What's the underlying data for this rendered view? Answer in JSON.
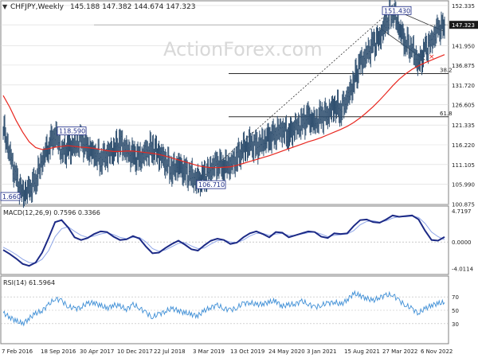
{
  "header": {
    "symbol_label": "CHFJPY,Weekly",
    "ohlc": "145.188 147.382 144.674 147.323"
  },
  "watermark": "ActionForex.com",
  "colors": {
    "price_bars": "#2f4f6f",
    "moving_average": "#e8271f",
    "macd_line": "#1c2a86",
    "signal_line": "#8fa6e8",
    "rsi_line": "#3f8fd6",
    "level_lines": "#2b2b2b",
    "grid": "#d9d9d9"
  },
  "chart_data": [
    {
      "type": "line",
      "title": "CHFJPY,Weekly",
      "ohlc_last": {
        "open": 145.188,
        "high": 147.382,
        "low": 144.674,
        "close": 147.323
      },
      "ylim": [
        100.75,
        153.35
      ],
      "yticks": [
        152.335,
        147.323,
        141.95,
        136.875,
        131.72,
        126.605,
        121.335,
        116.22,
        111.105,
        105.99,
        100.875
      ],
      "current_price_label": "147.323",
      "xticks": [
        "7 Feb 2016",
        "18 Sep 2016",
        "30 Apr 2017",
        "10 Dec 2017",
        "22 Jul 2018",
        "3 Mar 2019",
        "13 Oct 2019",
        "24 May 2020",
        "3 Jan 2021",
        "15 Aug 2021",
        "27 Mar 2022",
        "6 Nov 2022"
      ],
      "series": [
        {
          "values": [
            120.0,
            114.0,
            106.5,
            103.8,
            104.2,
            107.5,
            112.0,
            116.5,
            118.59,
            114.5,
            115.0,
            116.2,
            117.0,
            115.5,
            113.6,
            112.8,
            113.5,
            115.2,
            116.5,
            114.8,
            113.0,
            112.8,
            114.2,
            115.5,
            113.8,
            112.2,
            109.5,
            111.0,
            109.0,
            108.0,
            106.71,
            108.0,
            110.0,
            111.5,
            110.5,
            111.0,
            113.0,
            115.0,
            116.5,
            115.5,
            117.0,
            118.0,
            119.5,
            120.0,
            119.0,
            120.5,
            122.0,
            123.0,
            122.0,
            123.5,
            124.5,
            126.0,
            125.5,
            128.0,
            133.0,
            137.0,
            140.0,
            142.0,
            144.5,
            147.5,
            151.43,
            146.0,
            143.0,
            140.5,
            137.5,
            140.5,
            143.5,
            146.0,
            147.323
          ]
        },
        {
          "values": [
            129.0,
            126.0,
            122.5,
            119.5,
            117.0,
            115.5,
            115.0,
            115.2,
            115.6,
            115.8,
            116.0,
            115.8,
            115.6,
            115.5,
            115.3,
            115.0,
            114.7,
            114.5,
            114.5,
            114.6,
            114.6,
            114.4,
            114.2,
            114.0,
            113.7,
            113.3,
            112.8,
            112.3,
            111.8,
            111.3,
            110.8,
            110.5,
            110.3,
            110.3,
            110.4,
            110.5,
            110.9,
            111.4,
            111.9,
            112.4,
            112.9,
            113.4,
            114.0,
            114.6,
            115.2,
            115.8,
            116.4,
            117.0,
            117.5,
            118.1,
            118.8,
            119.5,
            120.2,
            121.0,
            122.0,
            123.2,
            124.6,
            126.1,
            127.8,
            129.6,
            131.5,
            133.2,
            134.6,
            135.8,
            136.7,
            137.5,
            138.2,
            138.9,
            139.6
          ]
        }
      ],
      "annotations": {
        "swing_labels": [
          "118.590",
          "106.710",
          "151.430",
          "1.660"
        ],
        "fibonacci_levels": [
          {
            "label": "38.2",
            "value": 134.68
          },
          {
            "label": "61.8",
            "value": 123.48
          }
        ]
      }
    },
    {
      "type": "line",
      "title": "MACD(12,26,9) 0.7596 0.3366",
      "ylim": [
        -4.9,
        5.3
      ],
      "yticks": [
        4.7197,
        0.0,
        -4.0114
      ],
      "series": [
        {
          "values": [
            -1.2,
            -1.8,
            -2.5,
            -3.3,
            -3.6,
            -3.1,
            -1.6,
            0.6,
            3.0,
            3.3,
            2.2,
            0.7,
            0.3,
            0.6,
            1.2,
            1.6,
            1.5,
            0.8,
            0.3,
            0.4,
            0.9,
            0.5,
            -0.7,
            -1.7,
            -1.6,
            -0.9,
            -0.3,
            0.2,
            -0.4,
            -1.1,
            -1.3,
            -0.5,
            0.2,
            0.5,
            0.3,
            -0.3,
            -0.1,
            0.7,
            1.3,
            1.6,
            1.2,
            0.7,
            1.5,
            1.4,
            0.7,
            1.0,
            1.3,
            1.6,
            1.5,
            0.8,
            0.6,
            1.3,
            1.2,
            1.3,
            2.4,
            3.3,
            3.4,
            3.0,
            2.9,
            3.4,
            4.0,
            3.8,
            3.9,
            4.0,
            3.4,
            1.7,
            0.3,
            0.2,
            0.76
          ]
        },
        {
          "values": [
            -0.8,
            -1.3,
            -1.9,
            -2.6,
            -3.1,
            -3.2,
            -2.6,
            -1.3,
            0.8,
            2.0,
            2.3,
            1.6,
            1.0,
            0.7,
            0.9,
            1.2,
            1.4,
            1.1,
            0.7,
            0.5,
            0.7,
            0.7,
            0.0,
            -1.0,
            -1.4,
            -1.2,
            -0.7,
            -0.2,
            -0.1,
            -0.6,
            -1.0,
            -0.9,
            -0.3,
            0.2,
            0.3,
            0.0,
            -0.1,
            0.3,
            0.9,
            1.3,
            1.3,
            1.0,
            1.2,
            1.3,
            1.0,
            1.0,
            1.2,
            1.4,
            1.5,
            1.2,
            0.8,
            1.0,
            1.1,
            1.2,
            1.7,
            2.6,
            3.1,
            3.2,
            3.0,
            3.2,
            3.6,
            3.8,
            3.8,
            3.9,
            3.7,
            2.8,
            1.5,
            0.8,
            0.34
          ]
        }
      ]
    },
    {
      "type": "line",
      "title": "RSI(14) 61.5964",
      "ylim": [
        0,
        100
      ],
      "yticks": [
        70,
        50,
        30
      ],
      "series": [
        {
          "values": [
            46,
            40,
            34,
            30,
            38,
            45,
            50,
            58,
            68,
            64,
            56,
            52,
            55,
            60,
            62,
            57,
            53,
            58,
            56,
            52,
            58,
            54,
            46,
            40,
            44,
            49,
            52,
            50,
            46,
            44,
            42,
            49,
            55,
            57,
            53,
            50,
            54,
            60,
            62,
            58,
            60,
            62,
            64,
            56,
            58,
            60,
            63,
            60,
            54,
            58,
            60,
            63,
            58,
            66,
            75,
            72,
            68,
            64,
            70,
            72,
            74,
            64,
            58,
            52,
            46,
            52,
            58,
            60,
            61.6
          ]
        }
      ]
    }
  ]
}
